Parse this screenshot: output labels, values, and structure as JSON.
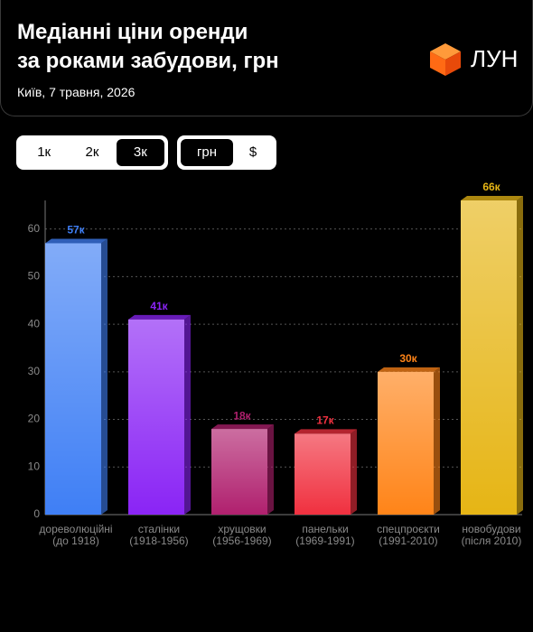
{
  "header": {
    "title": "Медіанні ціни оренди\nза роками забудови, грн",
    "subtitle": "Київ, 7 травня, 2026",
    "logo": "ЛУН"
  },
  "filters": {
    "rooms": [
      "1к",
      "2к",
      "3к"
    ],
    "rooms_active": 2,
    "currency": [
      "грн",
      "$"
    ],
    "currency_active": 0
  },
  "chart_data": {
    "type": "bar",
    "categories": [
      "дореволюційні\n(до 1918)",
      "сталінки\n(1918-1956)",
      "хрущовки\n(1956-1969)",
      "панельки\n(1969-1991)",
      "спецпроєкти\n(1991-2010)",
      "новобудови\n(після 2010)"
    ],
    "values": [
      57,
      41,
      18,
      17,
      30,
      66
    ],
    "value_labels": [
      "57к",
      "41к",
      "18к",
      "17к",
      "30к",
      "66к"
    ],
    "colors": [
      "#3f7ff5",
      "#8a24f5",
      "#b0206e",
      "#f0303f",
      "#ff8418",
      "#e6b515"
    ],
    "ylim": [
      0,
      66
    ],
    "yticks": [
      0,
      10,
      20,
      30,
      40,
      50,
      60
    ],
    "grid": true
  }
}
